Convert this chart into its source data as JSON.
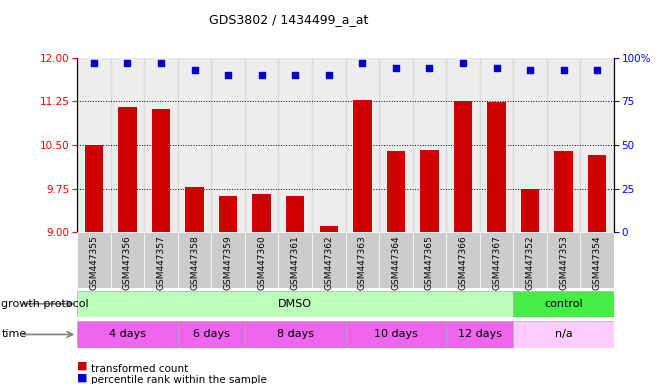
{
  "title": "GDS3802 / 1434499_a_at",
  "samples": [
    "GSM447355",
    "GSM447356",
    "GSM447357",
    "GSM447358",
    "GSM447359",
    "GSM447360",
    "GSM447361",
    "GSM447362",
    "GSM447363",
    "GSM447364",
    "GSM447365",
    "GSM447366",
    "GSM447367",
    "GSM447352",
    "GSM447353",
    "GSM447354"
  ],
  "bar_values": [
    10.5,
    11.15,
    11.12,
    9.78,
    9.62,
    9.65,
    9.63,
    9.1,
    11.28,
    10.4,
    10.42,
    11.25,
    11.24,
    9.75,
    10.4,
    10.32
  ],
  "percentile_values": [
    97,
    97,
    97,
    93,
    90,
    90,
    90,
    90,
    97,
    94,
    94,
    97,
    94,
    93,
    93,
    93
  ],
  "ylim_left": [
    9.0,
    12.0
  ],
  "ylim_right": [
    0,
    100
  ],
  "yticks_left": [
    9.0,
    9.75,
    10.5,
    11.25,
    12.0
  ],
  "yticks_right": [
    0,
    25,
    50,
    75,
    100
  ],
  "grid_lines": [
    9.75,
    10.5,
    11.25
  ],
  "bar_color": "#cc0000",
  "dot_color": "#0000cc",
  "bg_color": "#ffffff",
  "dmso_color": "#bbffbb",
  "control_color": "#44ee44",
  "time_color_dark": "#ee66ee",
  "time_color_light": "#ffccff",
  "xtick_bg": "#cccccc",
  "growth_protocol_label": "growth protocol",
  "time_label": "time",
  "legend_bar_label": "transformed count",
  "legend_dot_label": "percentile rank within the sample"
}
